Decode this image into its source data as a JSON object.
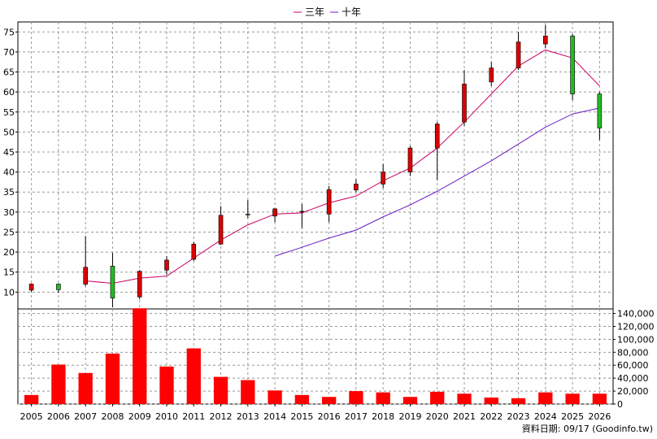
{
  "chart_data": {
    "type": "candlestick+volume",
    "legend": {
      "placement": "top-center",
      "items": [
        {
          "name": "三年",
          "color": "#cc0066"
        },
        {
          "name": "十年",
          "color": "#6a1fc0"
        }
      ]
    },
    "source": "資料日期: 09/17  (Goodinfo.tw)",
    "years": [
      "2005",
      "2006",
      "2007",
      "2008",
      "2009",
      "2010",
      "2011",
      "2012",
      "2013",
      "2014",
      "2015",
      "2016",
      "2017",
      "2018",
      "2019",
      "2020",
      "2021",
      "2022",
      "2023",
      "2024",
      "2025",
      "2026"
    ],
    "price_axis": {
      "ylim": [
        5.8,
        77.5
      ],
      "ticks": [
        10,
        15,
        20,
        25,
        30,
        35,
        40,
        45,
        50,
        55,
        60,
        65,
        70,
        75
      ]
    },
    "volume_axis": {
      "ylim": [
        0,
        147000
      ],
      "ticks": [
        0,
        20000,
        40000,
        60000,
        80000,
        100000,
        120000,
        140000
      ],
      "tick_labels": [
        "0",
        "20,000",
        "40,000",
        "60,000",
        "80,000",
        "100,000",
        "120,000",
        "140,000"
      ]
    },
    "candles": [
      {
        "year": "2005",
        "open": 10.5,
        "high": 12.2,
        "low": 10.0,
        "close": 12.0
      },
      {
        "year": "2006",
        "open": 12.0,
        "high": 12.2,
        "low": 9.8,
        "close": 10.6
      },
      {
        "year": "2007",
        "open": 12.0,
        "high": 24.0,
        "low": 11.5,
        "close": 16.2
      },
      {
        "year": "2008",
        "open": 16.5,
        "high": 19.8,
        "low": 6.2,
        "close": 8.5
      },
      {
        "year": "2009",
        "open": 8.8,
        "high": 15.5,
        "low": 8.2,
        "close": 15.2
      },
      {
        "year": "2010",
        "open": 15.5,
        "high": 19.0,
        "low": 14.3,
        "close": 18.0
      },
      {
        "year": "2011",
        "open": 18.2,
        "high": 22.5,
        "low": 17.8,
        "close": 22.0
      },
      {
        "year": "2012",
        "open": 22.0,
        "high": 31.5,
        "low": 21.8,
        "close": 29.2
      },
      {
        "year": "2013",
        "open": 29.5,
        "high": 33.0,
        "low": 28.5,
        "close": 29.3
      },
      {
        "year": "2014",
        "open": 29.0,
        "high": 31.0,
        "low": 27.5,
        "close": 30.8
      },
      {
        "year": "2015",
        "open": 30.0,
        "high": 32.0,
        "low": 26.0,
        "close": 30.2
      },
      {
        "year": "2016",
        "open": 29.5,
        "high": 36.5,
        "low": 27.5,
        "close": 35.6
      },
      {
        "year": "2017",
        "open": 35.5,
        "high": 38.2,
        "low": 35.0,
        "close": 37.0
      },
      {
        "year": "2018",
        "open": 37.0,
        "high": 42.0,
        "low": 36.0,
        "close": 40.0
      },
      {
        "year": "2019",
        "open": 40.0,
        "high": 46.5,
        "low": 39.0,
        "close": 46.0
      },
      {
        "year": "2020",
        "open": 46.0,
        "high": 52.5,
        "low": 38.0,
        "close": 52.0
      },
      {
        "year": "2021",
        "open": 52.5,
        "high": 65.5,
        "low": 51.5,
        "close": 62.0
      },
      {
        "year": "2022",
        "open": 62.5,
        "high": 67.5,
        "low": 61.5,
        "close": 66.0
      },
      {
        "year": "2023",
        "open": 66.0,
        "high": 75.0,
        "low": 65.5,
        "close": 72.5
      },
      {
        "year": "2024",
        "open": 72.0,
        "high": 76.8,
        "low": 71.0,
        "close": 74.0
      },
      {
        "year": "2025",
        "open": 74.0,
        "high": 74.5,
        "low": 58.0,
        "close": 59.5
      },
      {
        "year": "2026",
        "open": 59.5,
        "high": 60.0,
        "low": 48.0,
        "close": 51.0
      }
    ],
    "series": [
      {
        "name": "三年",
        "color": "#cc0066",
        "x": [
          "2007",
          "2008",
          "2009",
          "2010",
          "2011",
          "2012",
          "2013",
          "2014",
          "2015",
          "2016",
          "2017",
          "2018",
          "2019",
          "2020",
          "2021",
          "2022",
          "2023",
          "2024",
          "2025",
          "2026"
        ],
        "values": [
          12.8,
          12.2,
          13.5,
          14.0,
          18.5,
          23.0,
          26.8,
          29.5,
          29.8,
          32.3,
          34.0,
          37.8,
          41.0,
          46.0,
          52.5,
          59.5,
          66.5,
          70.5,
          68.5,
          61.5
        ]
      },
      {
        "name": "十年",
        "color": "#6a1fc0",
        "x": [
          "2014",
          "2015",
          "2016",
          "2017",
          "2018",
          "2019",
          "2020",
          "2021",
          "2022",
          "2023",
          "2024",
          "2025",
          "2026"
        ],
        "values": [
          19.0,
          21.2,
          23.5,
          25.5,
          28.8,
          31.8,
          35.2,
          39.0,
          42.8,
          47.0,
          51.2,
          54.5,
          56.0
        ]
      }
    ],
    "volume": [
      14000,
      61000,
      48000,
      78000,
      148000,
      58000,
      86000,
      42000,
      37000,
      21000,
      14000,
      11000,
      20000,
      18000,
      11000,
      19000,
      16000,
      10000,
      9000,
      18000,
      16000,
      16000
    ],
    "colors": {
      "volume": "#ff0000",
      "up": "#dd0000",
      "down": "#22bb22",
      "grid": "#999999"
    }
  }
}
